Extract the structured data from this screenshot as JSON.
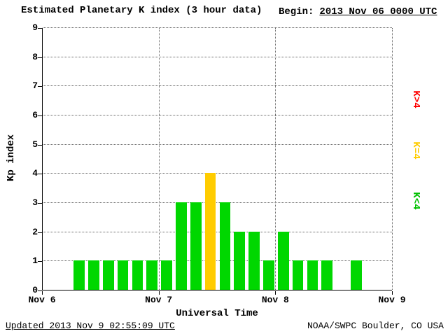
{
  "header": {
    "title": "Estimated Planetary K index (3 hour data)",
    "begin_label": "Begin:",
    "begin_value": "2013 Nov 06 0000 UTC"
  },
  "footer": {
    "updated": "Updated 2013 Nov 9 02:55:09 UTC",
    "credit": "NOAA/SWPC Boulder, CO USA"
  },
  "chart_data": {
    "type": "bar",
    "title": "Estimated Planetary K index (3 hour data)",
    "begin": "2013 Nov 06 0000 UTC",
    "xlabel": "Universal Time",
    "ylabel": "Kp index",
    "ylim": [
      0,
      9
    ],
    "y_ticks": [
      0,
      1,
      2,
      3,
      4,
      5,
      6,
      7,
      8,
      9
    ],
    "x_ticks": [
      "Nov 6",
      "Nov 7",
      "Nov 8",
      "Nov 9"
    ],
    "bar_interval_hours": 3,
    "values": [
      0,
      0,
      1,
      1,
      1,
      1,
      1,
      1,
      1,
      3,
      3,
      4,
      3,
      2,
      2,
      1,
      2,
      1,
      1,
      1,
      0,
      1,
      0,
      0
    ],
    "color_rule": {
      "below_4": "#00d700",
      "equal_4": "#ffcc00",
      "above_4": "#ff0000"
    },
    "grid": "dotted horizontal lines at each Kp integer; dotted vertical lines at day boundaries",
    "legend": [
      {
        "label": "K>4",
        "color": "#ff0000"
      },
      {
        "label": "K=4",
        "color": "#ffcc00"
      },
      {
        "label": "K<4",
        "color": "#00c000"
      }
    ],
    "legend_position": "right side, labels rotated 90 degrees"
  }
}
